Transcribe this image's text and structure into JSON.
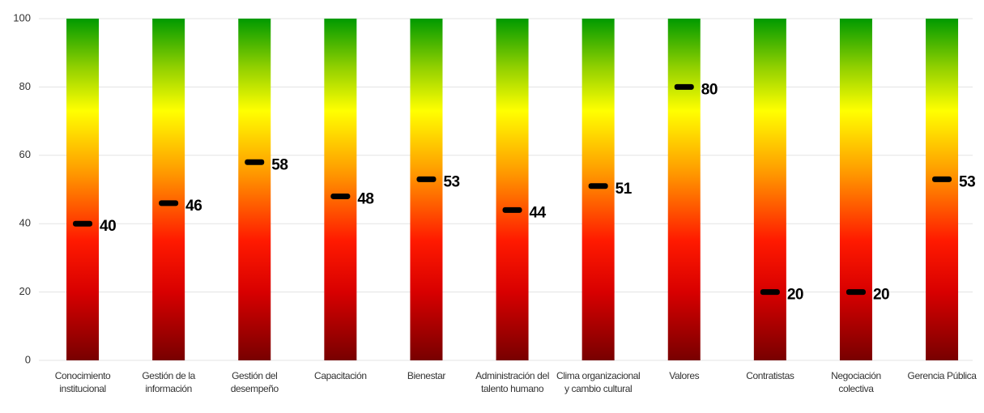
{
  "chart_data": {
    "type": "range-marker",
    "categories": [
      "Conocimiento institucional",
      "Gestión de la información",
      "Gestión del desempeño",
      "Capacitación",
      "Bienestar",
      "Administración del talento humano",
      "Clima organizacional y cambio cultural",
      "Valores",
      "Contratistas",
      "Negociación colectiva",
      "Gerencia Pública"
    ],
    "values": [
      40,
      46,
      58,
      48,
      53,
      44,
      51,
      80,
      20,
      20,
      53
    ],
    "color": "#000000",
    "ylim": [
      0,
      100
    ],
    "yticks": [
      0,
      20,
      40,
      60,
      80,
      100
    ],
    "grid": true
  }
}
